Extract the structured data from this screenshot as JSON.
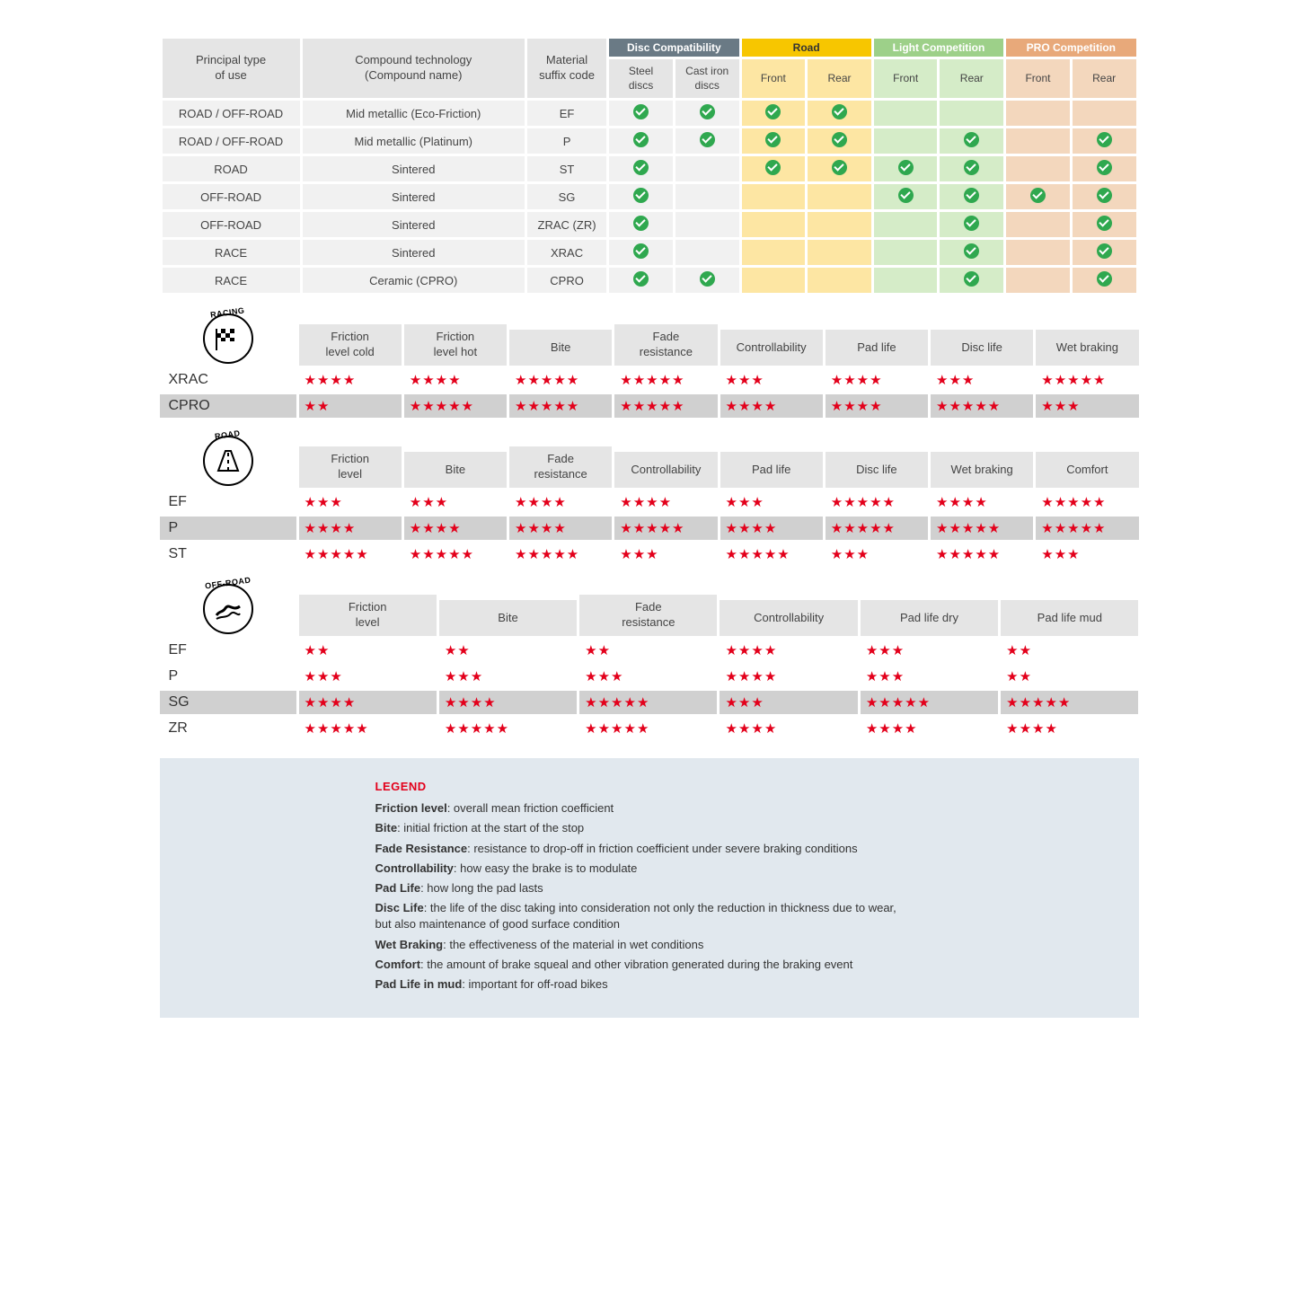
{
  "colors": {
    "disc": "#6a7a85",
    "road": "#f7c600",
    "light": "#9dd089",
    "pro": "#e8a97a",
    "check": "#2fa84f",
    "star": "#e3001b",
    "legend_bg": "#e1e8ee"
  },
  "compat": {
    "headers": {
      "principal": "Principal type\nof use",
      "compound": "Compound technology\n(Compound name)",
      "material": "Material\nsuffix code",
      "groups": [
        {
          "label": "Disc Compatibility",
          "subs": [
            "Steel\ndiscs",
            "Cast iron\ndiscs"
          ],
          "color": "#6a7a85",
          "sub_bg": "#e5e5e5"
        },
        {
          "label": "Road",
          "subs": [
            "Front",
            "Rear"
          ],
          "color": "#f7c600",
          "sub_bg": "#fde6a3"
        },
        {
          "label": "Light Competition",
          "subs": [
            "Front",
            "Rear"
          ],
          "color": "#9dd089",
          "sub_bg": "#d5ecc8"
        },
        {
          "label": "PRO Competition",
          "subs": [
            "Front",
            "Rear"
          ],
          "color": "#e8a97a",
          "sub_bg": "#f3d7bd"
        }
      ]
    },
    "rows": [
      {
        "use": "ROAD / OFF-ROAD",
        "compound": "Mid metallic (Eco-Friction)",
        "code": "EF",
        "marks": [
          1,
          1,
          1,
          1,
          0,
          0,
          0,
          0
        ]
      },
      {
        "use": "ROAD / OFF-ROAD",
        "compound": "Mid metallic (Platinum)",
        "code": "P",
        "marks": [
          1,
          1,
          1,
          1,
          0,
          1,
          0,
          1
        ]
      },
      {
        "use": "ROAD",
        "compound": "Sintered",
        "code": "ST",
        "marks": [
          1,
          0,
          1,
          1,
          1,
          1,
          0,
          1
        ]
      },
      {
        "use": "OFF-ROAD",
        "compound": "Sintered",
        "code": "SG",
        "marks": [
          1,
          0,
          0,
          0,
          1,
          1,
          1,
          1
        ]
      },
      {
        "use": "OFF-ROAD",
        "compound": "Sintered",
        "code": "ZRAC (ZR)",
        "marks": [
          1,
          0,
          0,
          0,
          0,
          1,
          0,
          1
        ]
      },
      {
        "use": "RACE",
        "compound": "Sintered",
        "code": "XRAC",
        "marks": [
          1,
          0,
          0,
          0,
          0,
          1,
          0,
          1
        ]
      },
      {
        "use": "RACE",
        "compound": "Ceramic (CPRO)",
        "code": "CPRO",
        "marks": [
          1,
          1,
          0,
          0,
          0,
          1,
          0,
          1
        ]
      }
    ]
  },
  "ratings": [
    {
      "badge": "RACING",
      "icon": "flag",
      "headers": [
        "Friction\nlevel cold",
        "Friction\nlevel hot",
        "Bite",
        "Fade\nresistance",
        "Controllability",
        "Pad life",
        "Disc life",
        "Wet braking"
      ],
      "rows": [
        {
          "label": "XRAC",
          "stars": [
            4,
            4,
            5,
            5,
            3,
            4,
            3,
            5
          ],
          "shade": false
        },
        {
          "label": "CPRO",
          "stars": [
            2,
            5,
            5,
            5,
            4,
            4,
            5,
            3
          ],
          "shade": true
        }
      ]
    },
    {
      "badge": "ROAD",
      "icon": "road",
      "headers": [
        "Friction\nlevel",
        "Bite",
        "Fade\nresistance",
        "Controllability",
        "Pad life",
        "Disc life",
        "Wet braking",
        "Comfort"
      ],
      "rows": [
        {
          "label": "EF",
          "stars": [
            3,
            3,
            4,
            4,
            3,
            5,
            4,
            5
          ],
          "shade": false
        },
        {
          "label": "P",
          "stars": [
            4,
            4,
            4,
            5,
            4,
            5,
            5,
            5
          ],
          "shade": true
        },
        {
          "label": "ST",
          "stars": [
            5,
            5,
            5,
            3,
            5,
            3,
            5,
            3
          ],
          "shade": false
        }
      ]
    },
    {
      "badge": "OFF-ROAD",
      "icon": "offroad",
      "headers": [
        "Friction\nlevel",
        "Bite",
        "Fade\nresistance",
        "Controllability",
        "Pad life dry",
        "Pad life mud"
      ],
      "rows": [
        {
          "label": "EF",
          "stars": [
            2,
            2,
            2,
            4,
            3,
            2
          ],
          "shade": false
        },
        {
          "label": "P",
          "stars": [
            3,
            3,
            3,
            4,
            3,
            2
          ],
          "shade": false
        },
        {
          "label": "SG",
          "stars": [
            4,
            4,
            5,
            3,
            5,
            5
          ],
          "shade": true
        },
        {
          "label": "ZR",
          "stars": [
            5,
            5,
            5,
            4,
            4,
            4
          ],
          "shade": false
        }
      ]
    }
  ],
  "legend": {
    "title": "LEGEND",
    "items": [
      {
        "term": "Friction level",
        "def": "overall mean friction coefficient"
      },
      {
        "term": "Bite",
        "def": "initial friction at the start of the stop"
      },
      {
        "term": "Fade Resistance",
        "def": "resistance to drop-off in friction coefficient under severe braking conditions"
      },
      {
        "term": "Controllability",
        "def": "how easy the brake is to modulate"
      },
      {
        "term": "Pad Life",
        "def": "how long the pad lasts"
      },
      {
        "term": "Disc Life",
        "def": "the life of the disc taking into consideration not only the reduction in thickness due to wear,\nbut also maintenance of good surface condition"
      },
      {
        "term": "Wet Braking",
        "def": "the effectiveness of the material in wet conditions"
      },
      {
        "term": "Comfort",
        "def": "the amount of brake squeal and other vibration generated during the braking event"
      },
      {
        "term": "Pad Life in mud",
        "def": "important for off-road bikes"
      }
    ]
  }
}
